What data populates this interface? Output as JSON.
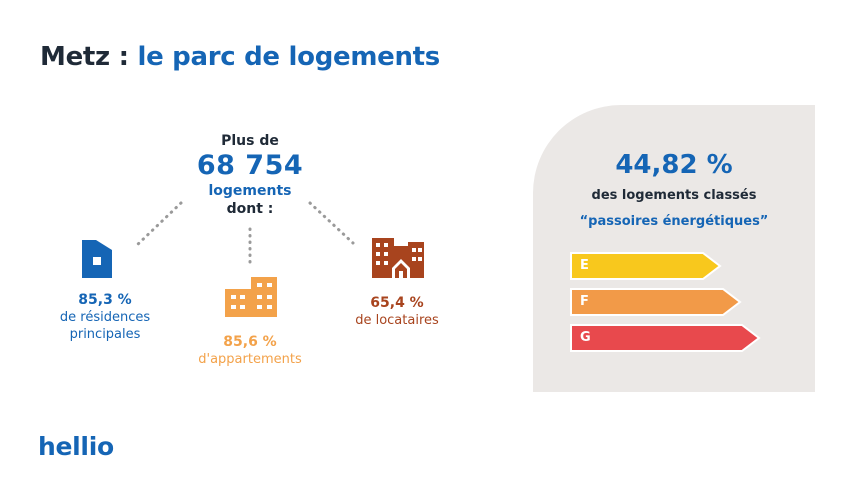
{
  "header": {
    "title_city": "Metz :",
    "title_rest": "le parc de logements"
  },
  "center": {
    "intro": "Plus de",
    "total": "68 754",
    "unit": "logements",
    "dont": "dont :"
  },
  "stats": [
    {
      "value": "85,3 %",
      "line1": "de résidences",
      "line2": "principales",
      "color": "#1565b5",
      "icon": "house-icon"
    },
    {
      "value": "85,6 %",
      "line1": "d'appartements",
      "color": "#f3a24a",
      "icon": "apartment-building-icon"
    },
    {
      "value": "65,4 %",
      "line1": "de locataires",
      "color": "#a8441e",
      "icon": "buildings-icon"
    }
  ],
  "panel": {
    "percent": "44,82 %",
    "line1": "des logements classés",
    "line2": "“passoires énergétiques”",
    "bars": [
      {
        "label": "E",
        "color": "#f8c81d"
      },
      {
        "label": "F",
        "color": "#f29a48"
      },
      {
        "label": "G",
        "color": "#e8494d"
      }
    ]
  },
  "footer": {
    "logo": "hellio"
  },
  "colors": {
    "blue": "#1565b5",
    "dark": "#1f2a37",
    "orange": "#f3a24a",
    "brown": "#a8441e",
    "panel": "#ebe8e6"
  }
}
